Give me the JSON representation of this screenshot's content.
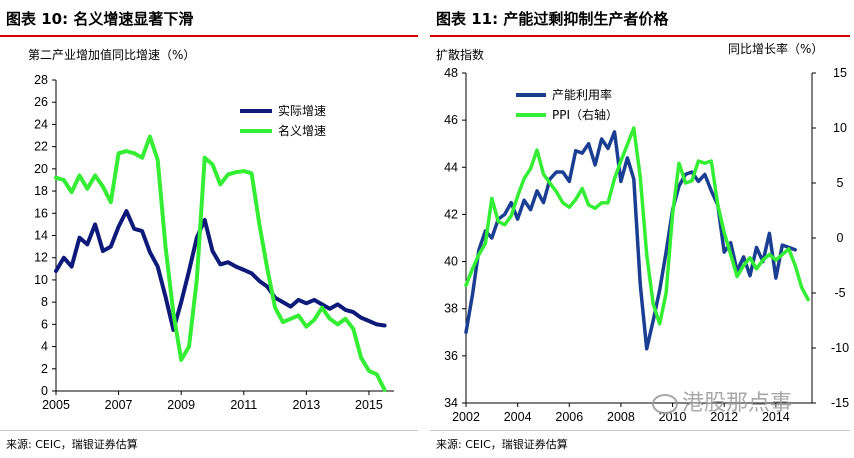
{
  "chart_data": [
    {
      "type": "line",
      "title": "图表 10: 名义增速显著下滑",
      "ylabel": "第二产业增加值同比增速（%）",
      "xlabel": "",
      "ylim": [
        0,
        28
      ],
      "xlim": [
        2005,
        2015.8
      ],
      "yticks": [
        0,
        2,
        4,
        6,
        8,
        10,
        12,
        14,
        16,
        18,
        20,
        22,
        24,
        26,
        28
      ],
      "xticks": [
        2005,
        2007,
        2009,
        2011,
        2013,
        2015
      ],
      "legend_position": "top-right",
      "source": "来源: CEIC，瑞银证券估算",
      "series": [
        {
          "name": "实际增速",
          "color": "#0d1a7a",
          "x": [
            2005,
            2005.25,
            2005.5,
            2005.75,
            2006,
            2006.25,
            2006.5,
            2006.75,
            2007,
            2007.25,
            2007.5,
            2007.75,
            2008,
            2008.25,
            2008.5,
            2008.75,
            2009,
            2009.25,
            2009.5,
            2009.75,
            2010,
            2010.25,
            2010.5,
            2010.75,
            2011,
            2011.25,
            2011.5,
            2011.75,
            2012,
            2012.25,
            2012.5,
            2012.75,
            2013,
            2013.25,
            2013.5,
            2013.75,
            2014,
            2014.25,
            2014.5,
            2014.75,
            2015,
            2015.25,
            2015.5
          ],
          "values": [
            10.8,
            12.0,
            11.2,
            13.8,
            13.2,
            15.0,
            12.6,
            13.0,
            14.8,
            16.2,
            14.6,
            14.4,
            12.5,
            11.2,
            8.5,
            5.5,
            8.0,
            10.8,
            13.8,
            15.4,
            12.6,
            11.4,
            11.6,
            11.2,
            10.9,
            10.6,
            9.9,
            9.4,
            8.4,
            8.0,
            7.6,
            8.2,
            7.9,
            8.2,
            7.8,
            7.4,
            7.8,
            7.3,
            7.1,
            6.6,
            6.3,
            6.0,
            5.9
          ]
        },
        {
          "name": "名义增速",
          "color": "#33ee33",
          "x": [
            2005,
            2005.25,
            2005.5,
            2005.75,
            2006,
            2006.25,
            2006.5,
            2006.75,
            2007,
            2007.25,
            2007.5,
            2007.75,
            2008,
            2008.25,
            2008.5,
            2008.75,
            2009,
            2009.25,
            2009.5,
            2009.75,
            2010,
            2010.25,
            2010.5,
            2010.75,
            2011,
            2011.25,
            2011.5,
            2011.75,
            2012,
            2012.25,
            2012.5,
            2012.75,
            2013,
            2013.25,
            2013.5,
            2013.75,
            2014,
            2014.25,
            2014.5,
            2014.75,
            2015,
            2015.25,
            2015.5
          ],
          "values": [
            19.2,
            19.0,
            17.9,
            19.4,
            18.2,
            19.4,
            18.4,
            17.0,
            21.4,
            21.6,
            21.4,
            21.0,
            22.9,
            20.8,
            13.0,
            7.0,
            2.8,
            4.0,
            10.0,
            21.0,
            20.4,
            18.6,
            19.5,
            19.7,
            19.8,
            19.6,
            15.0,
            11.0,
            7.5,
            6.2,
            6.5,
            6.8,
            5.8,
            6.4,
            7.5,
            6.5,
            6.0,
            6.5,
            5.6,
            3.0,
            1.8,
            1.5,
            0.1
          ]
        }
      ]
    },
    {
      "type": "line",
      "title": "图表 11: 产能过剩抑制生产者价格",
      "ylabel_left": "扩散指数",
      "ylabel_right": "同比增长率（%）",
      "xlabel": "",
      "ylim_left": [
        34,
        48
      ],
      "ylim_right": [
        -15,
        15
      ],
      "xlim": [
        2002,
        2015.4
      ],
      "yticks_left": [
        34,
        36,
        38,
        40,
        42,
        44,
        46,
        48
      ],
      "yticks_right": [
        -15,
        -10,
        -5,
        0,
        5,
        10,
        15
      ],
      "xticks": [
        2002,
        2004,
        2006,
        2008,
        2010,
        2012,
        2014
      ],
      "legend_position": "top-left",
      "source": "来源: CEIC，瑞银证券估算",
      "watermark": "港股那点事",
      "series": [
        {
          "name": "产能利用率",
          "axis": "left",
          "color": "#1a3f92",
          "x": [
            2002,
            2002.25,
            2002.5,
            2002.75,
            2003,
            2003.25,
            2003.5,
            2003.75,
            2004,
            2004.25,
            2004.5,
            2004.75,
            2005,
            2005.25,
            2005.5,
            2005.75,
            2006,
            2006.25,
            2006.5,
            2006.75,
            2007,
            2007.25,
            2007.5,
            2007.75,
            2008,
            2008.25,
            2008.5,
            2008.75,
            2009,
            2009.25,
            2009.5,
            2009.75,
            2010,
            2010.25,
            2010.5,
            2010.75,
            2011,
            2011.25,
            2011.5,
            2011.75,
            2012,
            2012.25,
            2012.5,
            2012.75,
            2013,
            2013.25,
            2013.5,
            2013.75,
            2014,
            2014.25,
            2014.5,
            2014.75
          ],
          "values": [
            37.0,
            38.6,
            40.5,
            41.3,
            41.0,
            41.8,
            42.0,
            42.5,
            41.8,
            42.6,
            42.2,
            43.0,
            42.5,
            43.5,
            43.8,
            43.8,
            43.4,
            44.7,
            44.6,
            45.0,
            44.1,
            45.2,
            44.8,
            45.5,
            43.4,
            44.4,
            43.5,
            39.0,
            36.3,
            37.5,
            38.8,
            40.4,
            42.2,
            43.2,
            43.7,
            43.8,
            43.4,
            43.7,
            43.0,
            42.4,
            40.4,
            40.8,
            39.6,
            40.2,
            39.4,
            40.6,
            40.0,
            41.2,
            39.3,
            40.7,
            40.6,
            40.5
          ]
        },
        {
          "name": "PPI（右轴）",
          "axis": "right",
          "color": "#33ee33",
          "x": [
            2002,
            2002.25,
            2002.5,
            2002.75,
            2003,
            2003.25,
            2003.5,
            2003.75,
            2004,
            2004.25,
            2004.5,
            2004.75,
            2005,
            2005.25,
            2005.5,
            2005.75,
            2006,
            2006.25,
            2006.5,
            2006.75,
            2007,
            2007.25,
            2007.5,
            2007.75,
            2008,
            2008.25,
            2008.5,
            2008.75,
            2009,
            2009.25,
            2009.5,
            2009.75,
            2010,
            2010.25,
            2010.5,
            2010.75,
            2011,
            2011.25,
            2011.5,
            2011.75,
            2012,
            2012.25,
            2012.5,
            2012.75,
            2013,
            2013.25,
            2013.5,
            2013.75,
            2014,
            2014.25,
            2014.5,
            2014.75,
            2015,
            2015.25
          ],
          "values": [
            -4.3,
            -2.8,
            -1.5,
            -0.5,
            3.6,
            1.5,
            1.2,
            2.0,
            3.8,
            5.4,
            6.3,
            8.0,
            5.8,
            5.0,
            4.2,
            3.2,
            2.8,
            3.5,
            4.5,
            3.0,
            2.7,
            3.2,
            3.2,
            5.4,
            7.0,
            8.5,
            10.0,
            5.5,
            -1.5,
            -6.0,
            -7.8,
            -5.0,
            2.2,
            6.8,
            5.0,
            5.2,
            7.0,
            6.8,
            7.0,
            3.0,
            0.5,
            -1.5,
            -3.5,
            -2.5,
            -1.8,
            -2.8,
            -2.0,
            -1.5,
            -2.0,
            -1.5,
            -1.0,
            -2.5,
            -4.5,
            -5.6
          ]
        }
      ]
    }
  ]
}
